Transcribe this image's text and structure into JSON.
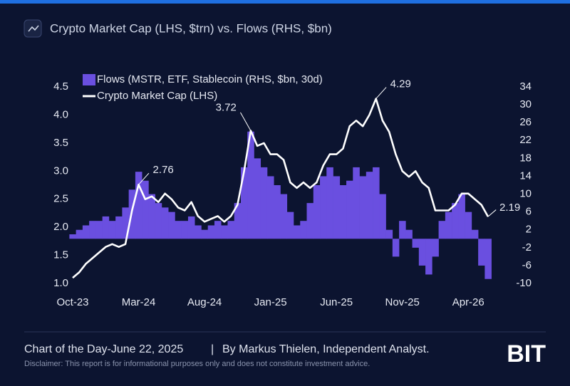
{
  "chart_data": {
    "type": "bar-line",
    "title": "Crypto Market Cap (LHS, $trn) vs. Flows (RHS, $bn)",
    "categories": [
      "Oct-23",
      null,
      null,
      null,
      null,
      null,
      null,
      null,
      null,
      null,
      "Mar-24",
      null,
      null,
      null,
      null,
      null,
      null,
      null,
      null,
      null,
      "Aug-24",
      null,
      null,
      null,
      null,
      null,
      null,
      null,
      null,
      null,
      "Jan-25",
      null,
      null,
      null,
      null,
      null,
      null,
      null,
      null,
      null,
      "Jun-25",
      null,
      null,
      null,
      null,
      null,
      null,
      null,
      null,
      null,
      "Nov-25",
      null,
      null,
      null,
      null,
      null,
      null,
      null,
      null,
      null,
      "Apr-26",
      null,
      null,
      null
    ],
    "series": [
      {
        "name": "Flows (MSTR, ETF, Stablecoin (RHS, $bn, 30d)",
        "type": "bar",
        "axis": "y2",
        "color": "#6a4fe0",
        "values": [
          1,
          2,
          3,
          4,
          4,
          5,
          4,
          5,
          7,
          11,
          15,
          13,
          10,
          8,
          7,
          6,
          4,
          4,
          5,
          3,
          2,
          3,
          4,
          3,
          4,
          8,
          16,
          24,
          18,
          16,
          14,
          12,
          10,
          6,
          3,
          4,
          8,
          12,
          14,
          16,
          14,
          12,
          13,
          16,
          14,
          15,
          16,
          10,
          2,
          -4,
          4,
          2,
          -2,
          -6,
          -8,
          -4,
          4,
          6,
          8,
          10,
          6,
          2,
          -6,
          -9
        ]
      },
      {
        "name": "Crypto Market Cap (LHS)",
        "type": "line",
        "axis": "y",
        "color": "#ffffff",
        "values": [
          1.1,
          1.2,
          1.35,
          1.45,
          1.55,
          1.65,
          1.7,
          1.65,
          1.7,
          2.3,
          2.76,
          2.5,
          2.55,
          2.45,
          2.6,
          2.5,
          2.35,
          2.3,
          2.45,
          2.2,
          2.1,
          2.15,
          2.2,
          2.1,
          2.2,
          2.4,
          3.0,
          3.72,
          3.45,
          3.5,
          3.3,
          3.3,
          3.2,
          2.8,
          2.7,
          2.8,
          2.7,
          2.8,
          3.1,
          3.3,
          3.3,
          3.4,
          3.8,
          3.9,
          3.8,
          4.0,
          4.29,
          3.9,
          3.7,
          3.3,
          3.0,
          2.9,
          3.0,
          2.8,
          2.7,
          2.3,
          2.3,
          2.3,
          2.4,
          2.6,
          2.6,
          2.5,
          2.4,
          2.19
        ]
      }
    ],
    "ylim": [
      1.0,
      4.5
    ],
    "yticks": [
      {
        "value": 1.0,
        "label": "1.0"
      },
      1.5,
      {
        "value": 2.0,
        "label": "2.0"
      },
      2.5,
      {
        "value": 3.0,
        "label": "3.0"
      },
      3.5,
      {
        "value": 4.0,
        "label": "4.0"
      },
      4.5
    ],
    "y2lim": [
      -10,
      34
    ],
    "y2ticks": [
      -10,
      -6,
      -2,
      2,
      6,
      10,
      14,
      18,
      22,
      26,
      30,
      34
    ],
    "legend": "upper left",
    "grid": false
  },
  "footer": {
    "note": "Chart of the Day-June 22, 2025",
    "separator": "|",
    "author": "By Markus Thielen, Independent Analyst.",
    "disclaimer": "Disclaimer: This report is for informational purposes only and does not constitute investment advice.",
    "logo": "BIT"
  }
}
